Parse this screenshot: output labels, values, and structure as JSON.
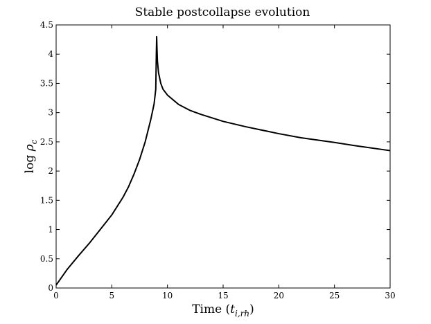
{
  "chart_data": {
    "type": "line",
    "title": "Stable postcollapse evolution",
    "xlabel": {
      "prefix": "Time (",
      "symbol": "t",
      "subscript": "i,rh",
      "suffix": ")"
    },
    "ylabel": {
      "prefix": "log ",
      "symbol": "ρ",
      "subscript": "c"
    },
    "xlim": [
      0,
      30
    ],
    "ylim": [
      0,
      4.5
    ],
    "xticks": [
      0,
      5,
      10,
      15,
      20,
      25,
      30
    ],
    "yticks": [
      0,
      0.5,
      1,
      1.5,
      2,
      2.5,
      3,
      3.5,
      4,
      4.5
    ],
    "xtick_labels": [
      "0",
      "5",
      "10",
      "15",
      "20",
      "25",
      "30"
    ],
    "ytick_labels": [
      "0",
      "0.5",
      "1",
      "1.5",
      "2",
      "2.5",
      "3",
      "3.5",
      "4",
      "4.5"
    ],
    "grid": false,
    "series": [
      {
        "color": "#000000",
        "x": [
          0,
          1,
          2,
          3,
          4,
          5,
          6,
          6.5,
          7,
          7.5,
          8,
          8.5,
          8.8,
          8.95,
          9.0,
          9.03,
          9.06,
          9.1,
          9.2,
          9.4,
          9.6,
          10,
          11,
          12,
          13,
          15,
          17,
          20,
          22,
          25,
          27,
          30
        ],
        "y": [
          0.05,
          0.32,
          0.55,
          0.77,
          1.01,
          1.25,
          1.55,
          1.73,
          1.95,
          2.2,
          2.5,
          2.88,
          3.15,
          3.4,
          4.0,
          4.3,
          4.1,
          3.88,
          3.68,
          3.5,
          3.4,
          3.3,
          3.14,
          3.04,
          2.97,
          2.85,
          2.76,
          2.64,
          2.57,
          2.49,
          2.43,
          2.35
        ]
      }
    ]
  }
}
